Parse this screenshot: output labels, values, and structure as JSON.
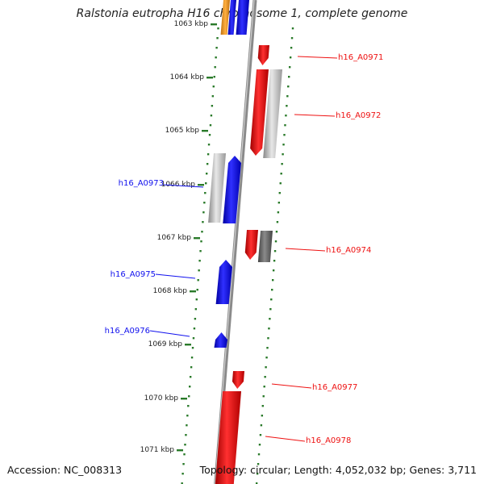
{
  "title": "Ralstonia eutropha H16 chromosome 1, complete genome",
  "accession": "Accession: NC_008313",
  "topology": "Topology: circular; Length: 4,052,032 bp; Genes: 3,711",
  "colors": {
    "forward": "#ee1111",
    "reverse": "#1111ee",
    "gray": "#bbbbbb",
    "darkgray": "#666666",
    "orange": "#f0a030",
    "tick": "#2a7a2a",
    "axis": "#888888"
  },
  "axis_ticks": [
    {
      "label": "1063 kbp"
    },
    {
      "label": "1064 kbp"
    },
    {
      "label": "1065 kbp"
    },
    {
      "label": "1066 kbp"
    },
    {
      "label": "1067 kbp"
    },
    {
      "label": "1068 kbp"
    },
    {
      "label": "1069 kbp"
    },
    {
      "label": "1070 kbp"
    },
    {
      "label": "1071 kbp"
    }
  ],
  "gene_labels": [
    {
      "name": "h16_A0971",
      "strand": "forward"
    },
    {
      "name": "h16_A0972",
      "strand": "forward"
    },
    {
      "name": "h16_A0973",
      "strand": "reverse"
    },
    {
      "name": "h16_A0974",
      "strand": "forward"
    },
    {
      "name": "h16_A0975",
      "strand": "reverse"
    },
    {
      "name": "h16_A0976",
      "strand": "reverse"
    },
    {
      "name": "h16_A0977",
      "strand": "forward"
    },
    {
      "name": "h16_A0978",
      "strand": "forward"
    }
  ]
}
